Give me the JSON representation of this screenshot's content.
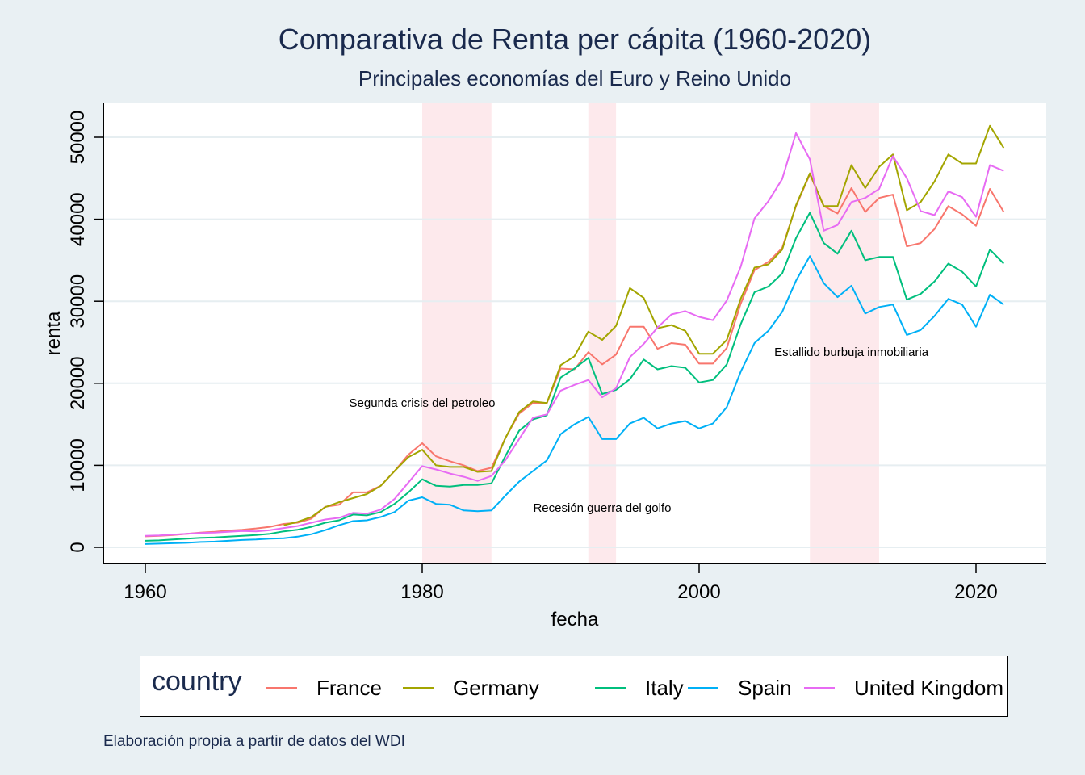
{
  "chart_data": {
    "type": "line",
    "title": "Comparativa de Renta per cápita (1960-2020)",
    "subtitle": "Principales economías del Euro y Reino Unido",
    "xlabel": "fecha",
    "ylabel": "renta",
    "caption": "Elaboración propia a partir de datos del WDI",
    "xlim": [
      1957,
      2025
    ],
    "ylim": [
      -2000,
      54000
    ],
    "xticks": [
      1960,
      1980,
      2000,
      2020
    ],
    "yticks": [
      0,
      10000,
      20000,
      30000,
      40000,
      50000
    ],
    "grid": true,
    "legend": {
      "title": "country",
      "position": "bottom"
    },
    "shaded_periods": [
      {
        "start": 1980,
        "end": 1985,
        "color": "#fde9ec"
      },
      {
        "start": 1992,
        "end": 1994,
        "color": "#fde9ec"
      },
      {
        "start": 2008,
        "end": 2013,
        "color": "#fde9ec"
      }
    ],
    "annotations": [
      {
        "text": "Segunda crisis del petroleo",
        "x": 1980,
        "y": 17600
      },
      {
        "text": "Recesión guerra del golfo",
        "x": 1993,
        "y": 4800
      },
      {
        "text": "Estallido burbuja inmobiliaria",
        "x": 2011,
        "y": 23800
      }
    ],
    "series": [
      {
        "name": "France",
        "color": "#f8766d",
        "start": 1960,
        "values": [
          1340,
          1400,
          1500,
          1650,
          1800,
          1900,
          2050,
          2150,
          2300,
          2500,
          2850,
          3000,
          3500,
          4950,
          5200,
          6700,
          6700,
          7500,
          9300,
          11300,
          12700,
          11100,
          10500,
          10000,
          9300,
          9700,
          13300,
          16300,
          17600,
          17600,
          21800,
          21700,
          23800,
          22300,
          23500,
          26900,
          26900,
          24200,
          24900,
          24700,
          22400,
          22400,
          24300,
          29700,
          33800,
          34800,
          36500,
          41600,
          45500,
          41600,
          40700,
          43800,
          40900,
          42600,
          43000,
          36700,
          37100,
          38800,
          41600,
          40600,
          39200,
          43700,
          40900
        ]
      },
      {
        "name": "Germany",
        "color": "#a3a500",
        "start": 1970,
        "values": [
          2700,
          3100,
          3700,
          4900,
          5500,
          6000,
          6500,
          7500,
          9300,
          11000,
          11900,
          10000,
          9800,
          9800,
          9200,
          9300,
          13300,
          16500,
          17800,
          17600,
          22200,
          23300,
          26300,
          25300,
          27000,
          31600,
          30400,
          26700,
          27100,
          26400,
          23600,
          23600,
          25300,
          30300,
          34100,
          34500,
          36300,
          41700,
          45600,
          41600,
          41600,
          46600,
          43800,
          46400,
          47900,
          41100,
          42100,
          44600,
          47900,
          46800,
          46800,
          51400,
          48700
        ]
      },
      {
        "name": "Italy",
        "color": "#00bf7d",
        "start": 1960,
        "values": [
          800,
          850,
          950,
          1050,
          1150,
          1200,
          1300,
          1400,
          1500,
          1650,
          1950,
          2150,
          2500,
          3000,
          3300,
          4000,
          3900,
          4300,
          5300,
          6700,
          8300,
          7500,
          7400,
          7600,
          7600,
          7800,
          11100,
          14200,
          15600,
          16100,
          20700,
          21800,
          23100,
          18700,
          19200,
          20500,
          22900,
          21700,
          22100,
          21900,
          20100,
          20400,
          22300,
          27200,
          31100,
          31800,
          33400,
          37700,
          40800,
          37100,
          35800,
          38600,
          35000,
          35400,
          35400,
          30200,
          30900,
          32400,
          34600,
          33600,
          31800,
          36300,
          34600
        ]
      },
      {
        "name": "Spain",
        "color": "#00b0f6",
        "start": 1960,
        "values": [
          400,
          450,
          500,
          550,
          650,
          700,
          800,
          900,
          950,
          1050,
          1100,
          1300,
          1600,
          2100,
          2700,
          3200,
          3300,
          3700,
          4300,
          5700,
          6100,
          5300,
          5200,
          4500,
          4400,
          4500,
          6300,
          8000,
          9300,
          10600,
          13800,
          15000,
          15900,
          13200,
          13200,
          15100,
          15800,
          14500,
          15100,
          15400,
          14500,
          15100,
          17100,
          21400,
          24900,
          26400,
          28700,
          32500,
          35500,
          32200,
          30500,
          31900,
          28500,
          29300,
          29600,
          25900,
          26500,
          28200,
          30300,
          29600,
          26900,
          30800,
          29600
        ]
      },
      {
        "name": "United Kingdom",
        "color": "#e76bf3",
        "start": 1960,
        "values": [
          1400,
          1450,
          1550,
          1650,
          1750,
          1800,
          1900,
          2000,
          1950,
          2100,
          2350,
          2600,
          3000,
          3400,
          3600,
          4200,
          4100,
          4600,
          5900,
          7900,
          9900,
          9500,
          9000,
          8600,
          8100,
          8700,
          10600,
          13200,
          15800,
          16200,
          19100,
          19800,
          20400,
          18300,
          19400,
          23200,
          24800,
          26800,
          28400,
          28800,
          28100,
          27700,
          30100,
          34200,
          40100,
          42200,
          44900,
          50500,
          47300,
          38600,
          39300,
          42100,
          42600,
          43700,
          47700,
          45000,
          41000,
          40500,
          43400,
          42700,
          40300,
          46600,
          45900
        ]
      }
    ]
  }
}
